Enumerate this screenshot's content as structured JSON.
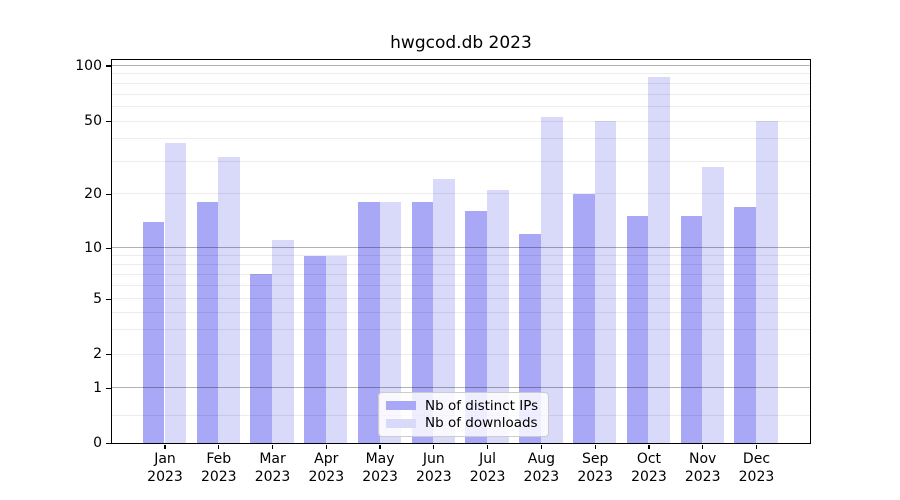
{
  "chart_data": {
    "type": "bar",
    "title": "hwgcod.db 2023",
    "categories": [
      "Jan 2023",
      "Feb 2023",
      "Mar 2023",
      "Apr 2023",
      "May 2023",
      "Jun 2023",
      "Jul 2023",
      "Aug 2023",
      "Sep 2023",
      "Oct 2023",
      "Nov 2023",
      "Dec 2023"
    ],
    "months": [
      "Jan",
      "Feb",
      "Mar",
      "Apr",
      "May",
      "Jun",
      "Jul",
      "Aug",
      "Sep",
      "Oct",
      "Nov",
      "Dec"
    ],
    "year": "2023",
    "series": [
      {
        "name": "Nb of distinct IPs",
        "color": "#a8a8f7",
        "values": [
          14,
          18,
          7,
          9,
          18,
          18,
          16,
          12,
          20,
          15,
          15,
          17
        ]
      },
      {
        "name": "Nb of downloads",
        "color": "#d9d9fa",
        "values": [
          38,
          32,
          11,
          9,
          18,
          24,
          21,
          53,
          50,
          87,
          28,
          50
        ]
      }
    ],
    "xlabel": "",
    "ylabel": "",
    "y_axis": {
      "scale": "log-like",
      "ticks": [
        0,
        1,
        2,
        5,
        10,
        20,
        50,
        100
      ],
      "tick_labels": [
        "0",
        "1",
        "2",
        "5",
        "10",
        "20",
        "50",
        "100"
      ],
      "gridlines_major": [
        1,
        10,
        100
      ],
      "gridlines_minor": [
        0.5,
        2,
        3,
        4,
        5,
        6,
        7,
        8,
        9,
        20,
        30,
        40,
        50,
        60,
        70,
        80,
        90
      ],
      "ylim": [
        0,
        108
      ]
    },
    "grid": true,
    "legend": {
      "position": "lower center",
      "entries": [
        "Nb of distinct IPs",
        "Nb of downloads"
      ]
    }
  }
}
